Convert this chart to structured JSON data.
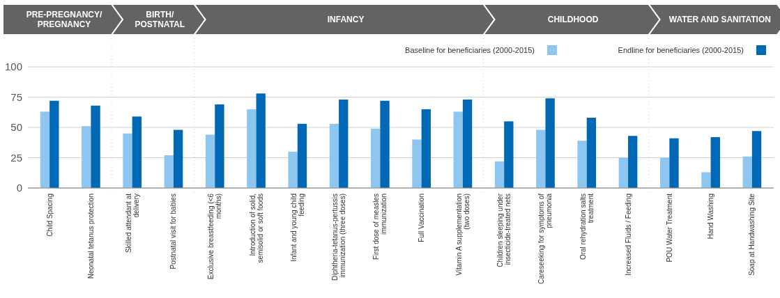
{
  "chart_data": {
    "type": "bar",
    "categories": [
      "Child Spacing",
      "Neonatal tetanus protection",
      "Skilled attendant at delivery",
      "Postnatal visit for babies",
      "Exclusive breastfeeding (<6 months)",
      "Introduction of solid, semisolid or soft foods",
      "Infant and young child feeding",
      "Diphtheria-tetanus-pertussis immunization (three doses)",
      "First dose of measles immunization",
      "Full Vaccination",
      "Vitamin A supplementation (two doses)",
      "Children sleeping under insecticide-treated nets",
      "Careseeking for symptoms of pneumonia",
      "Oral rehydration salts treatment",
      "Increased Fluids / Feeding",
      "POU Water Treatment",
      "Hand Washing",
      "Soap at Handwashing Site"
    ],
    "series": [
      {
        "name": "Baseline for beneficiaries (2000-2015)",
        "color": "#8dc6f0",
        "values": [
          63,
          51,
          45,
          27,
          44,
          65,
          30,
          53,
          49,
          40,
          63,
          22,
          48,
          39,
          25,
          25,
          13,
          26
        ]
      },
      {
        "name": "Endline for beneficiaries (2000-2015)",
        "color": "#0068b5",
        "values": [
          72,
          68,
          59,
          48,
          69,
          78,
          53,
          73,
          72,
          65,
          73,
          55,
          74,
          58,
          43,
          41,
          42,
          47
        ]
      }
    ],
    "annotations": [
      "PRE-PREGNANCY/ PREGNANCY",
      "BIRTH/ POSTNATAL",
      "INFANCY",
      "CHILDHOOD",
      "WATER AND SANITATION"
    ],
    "ylim": [
      0,
      100
    ],
    "yticks": [
      0,
      25,
      50,
      75,
      100
    ],
    "grid": "y",
    "legend": "top right"
  }
}
